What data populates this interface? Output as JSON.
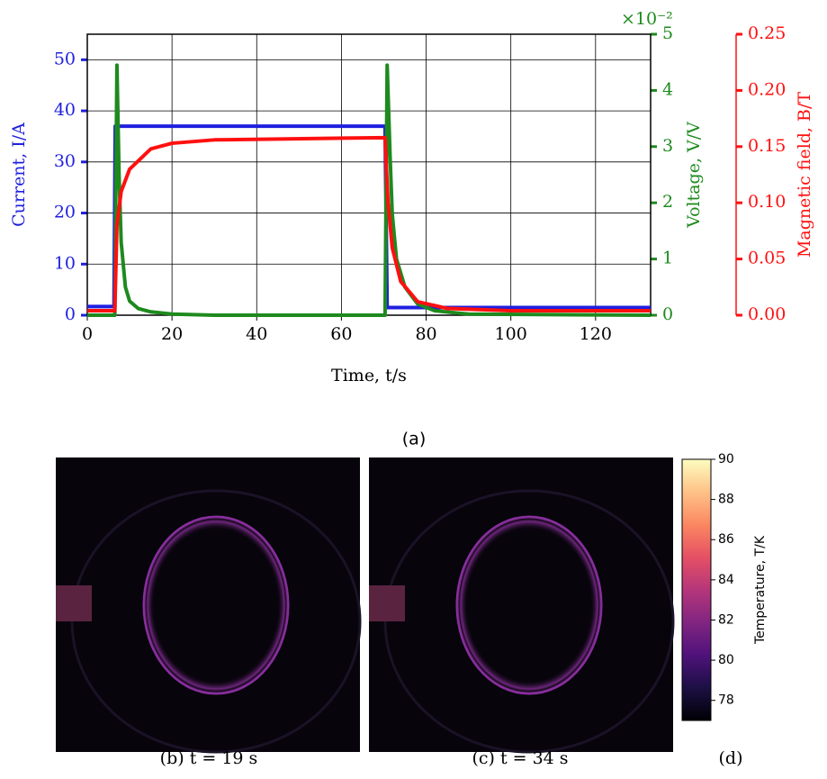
{
  "chart_data": [
    {
      "type": "line",
      "xlabel": "Time, t/s",
      "ylabel": "Current, I/A",
      "y2label": "Voltage, V/V",
      "y2_multiplier": "×10⁻²",
      "y3label": "Magnetic field, B/T",
      "xlim": [
        0,
        133
      ],
      "xticks": [
        0,
        20,
        40,
        60,
        80,
        100,
        120
      ],
      "ylim": [
        0,
        55
      ],
      "yticks": [
        0,
        10,
        20,
        30,
        40,
        50
      ],
      "y2lim": [
        0,
        5
      ],
      "y2ticks": [
        0,
        1,
        2,
        3,
        4,
        5
      ],
      "y3lim": [
        0,
        0.25
      ],
      "y3ticks": [
        {
          "value": 0,
          "label": "0.00"
        },
        0.05,
        {
          "value": 0.1,
          "label": "0.10"
        },
        0.15,
        {
          "value": 0.2,
          "label": "0.20"
        },
        0.25
      ],
      "grid": true,
      "series": [
        {
          "name": "Current",
          "color": "#1f1fe0",
          "axis": "y",
          "x": [
            0,
            6.3,
            6.6,
            70.3,
            70.8,
            133
          ],
          "values": [
            1.7,
            1.7,
            37,
            37,
            1.5,
            1.5
          ]
        },
        {
          "name": "Voltage",
          "color": "#1e8a1e",
          "axis": "y2",
          "x": [
            0,
            6.5,
            7,
            7.5,
            8,
            9,
            10,
            12,
            15,
            20,
            30,
            70.3,
            70.8,
            71.5,
            72,
            73,
            75,
            78,
            82,
            90,
            133
          ],
          "values": [
            0,
            0,
            4.45,
            2.5,
            1.3,
            0.5,
            0.25,
            0.12,
            0.06,
            0.02,
            0,
            0,
            4.45,
            2.8,
            1.8,
            1.0,
            0.5,
            0.2,
            0.08,
            0.02,
            0
          ]
        },
        {
          "name": "Magnetic field",
          "color": "#ff1010",
          "axis": "y3",
          "x": [
            0,
            6.5,
            7,
            8,
            10,
            15,
            20,
            30,
            70.3,
            71,
            72,
            74,
            78,
            85,
            100,
            133
          ],
          "values": [
            0.004,
            0.004,
            0.08,
            0.11,
            0.13,
            0.148,
            0.153,
            0.156,
            0.158,
            0.1,
            0.06,
            0.03,
            0.012,
            0.006,
            0.004,
            0.004
          ]
        }
      ]
    },
    {
      "type": "colorbar",
      "label": "Temperature, T/K",
      "colormap": "magma",
      "ylim": [
        77,
        90
      ],
      "yticks": [
        78,
        80,
        82,
        84,
        86,
        88,
        90
      ]
    }
  ],
  "panels": {
    "a": "(a)",
    "b": "(b) t = 19 s",
    "c": "(c) t = 34 s",
    "d": "(d)"
  }
}
